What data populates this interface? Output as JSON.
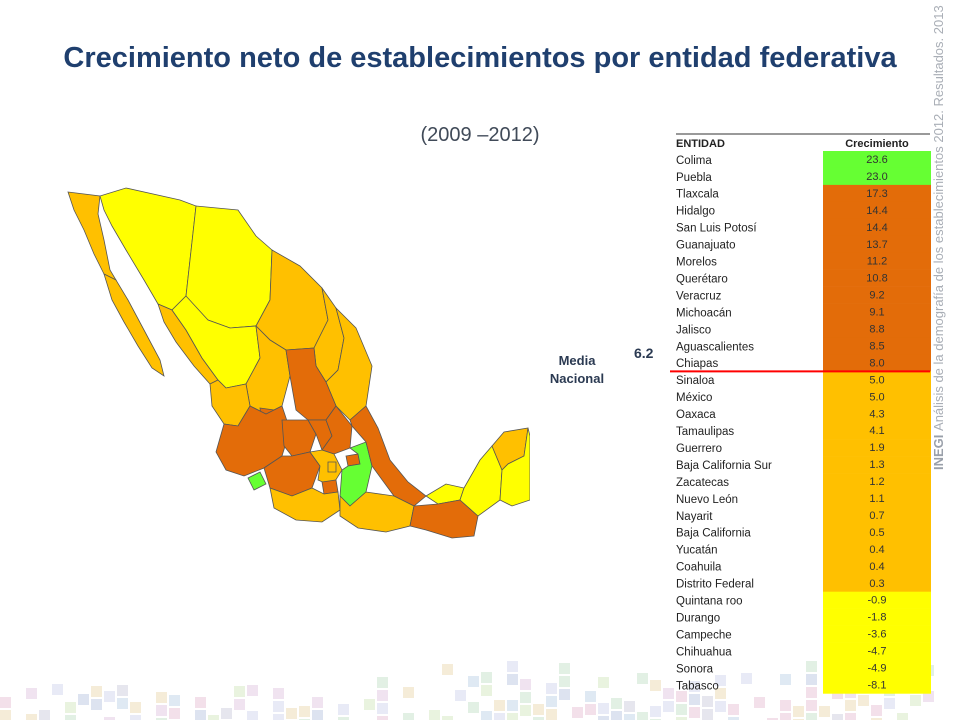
{
  "title": "Crecimiento neto de establecimientos por entidad federativa",
  "subtitle": "(2009 –2012)",
  "watermark": {
    "brand": "INEGI",
    "text": "Análisis de la demografía de los establecimientos 2012. Resultados. 2013"
  },
  "mean": {
    "label_line1": "Media",
    "label_line2": "Nacional",
    "value": "6.2"
  },
  "colors": {
    "green": "#66ff33",
    "dark_orange": "#e36c09",
    "orange": "#ffc000",
    "yellow": "#ffff00",
    "title": "#1f3f6e",
    "mean_line": "#ff0000"
  },
  "chart_data": {
    "type": "table",
    "columns": [
      "ENTIDAD",
      "Crecimiento"
    ],
    "rows": [
      {
        "entidad": "Colima",
        "value": "23.6"
      },
      {
        "entidad": "Puebla",
        "value": "23.0"
      },
      {
        "entidad": "Tlaxcala",
        "value": "17.3"
      },
      {
        "entidad": "Hidalgo",
        "value": "14.4"
      },
      {
        "entidad": "San Luis Potosí",
        "value": "14.4"
      },
      {
        "entidad": "Guanajuato",
        "value": "13.7"
      },
      {
        "entidad": "Morelos",
        "value": "11.2"
      },
      {
        "entidad": "Querétaro",
        "value": "10.8"
      },
      {
        "entidad": "Veracruz",
        "value": "9.2"
      },
      {
        "entidad": "Michoacán",
        "value": "9.1"
      },
      {
        "entidad": "Jalisco",
        "value": "8.8"
      },
      {
        "entidad": "Aguascalientes",
        "value": "8.5"
      },
      {
        "entidad": "Chiapas",
        "value": "8.0"
      },
      {
        "entidad": "Sinaloa",
        "value": "5.0"
      },
      {
        "entidad": "México",
        "value": "5.0"
      },
      {
        "entidad": "Oaxaca",
        "value": "4.3"
      },
      {
        "entidad": "Tamaulipas",
        "value": "4.1"
      },
      {
        "entidad": "Guerrero",
        "value": "1.9"
      },
      {
        "entidad": "Baja California Sur",
        "value": "1.3"
      },
      {
        "entidad": "Zacatecas",
        "value": "1.2"
      },
      {
        "entidad": "Nuevo León",
        "value": "1.1"
      },
      {
        "entidad": "Nayarit",
        "value": "0.7"
      },
      {
        "entidad": "Baja California",
        "value": "0.5"
      },
      {
        "entidad": "Yucatán",
        "value": "0.4"
      },
      {
        "entidad": "Coahuila",
        "value": "0.4"
      },
      {
        "entidad": "Distrito Federal",
        "value": "0.3"
      },
      {
        "entidad": "Quintana roo",
        "value": "-0.9"
      },
      {
        "entidad": "Durango",
        "value": "-1.8"
      },
      {
        "entidad": "Campeche",
        "value": "-3.6"
      },
      {
        "entidad": "Chihuahua",
        "value": "-4.7"
      },
      {
        "entidad": "Sonora",
        "value": "-4.9"
      },
      {
        "entidad": "Tabasco",
        "value": "-8.1"
      }
    ],
    "mean_threshold": 6.2
  }
}
